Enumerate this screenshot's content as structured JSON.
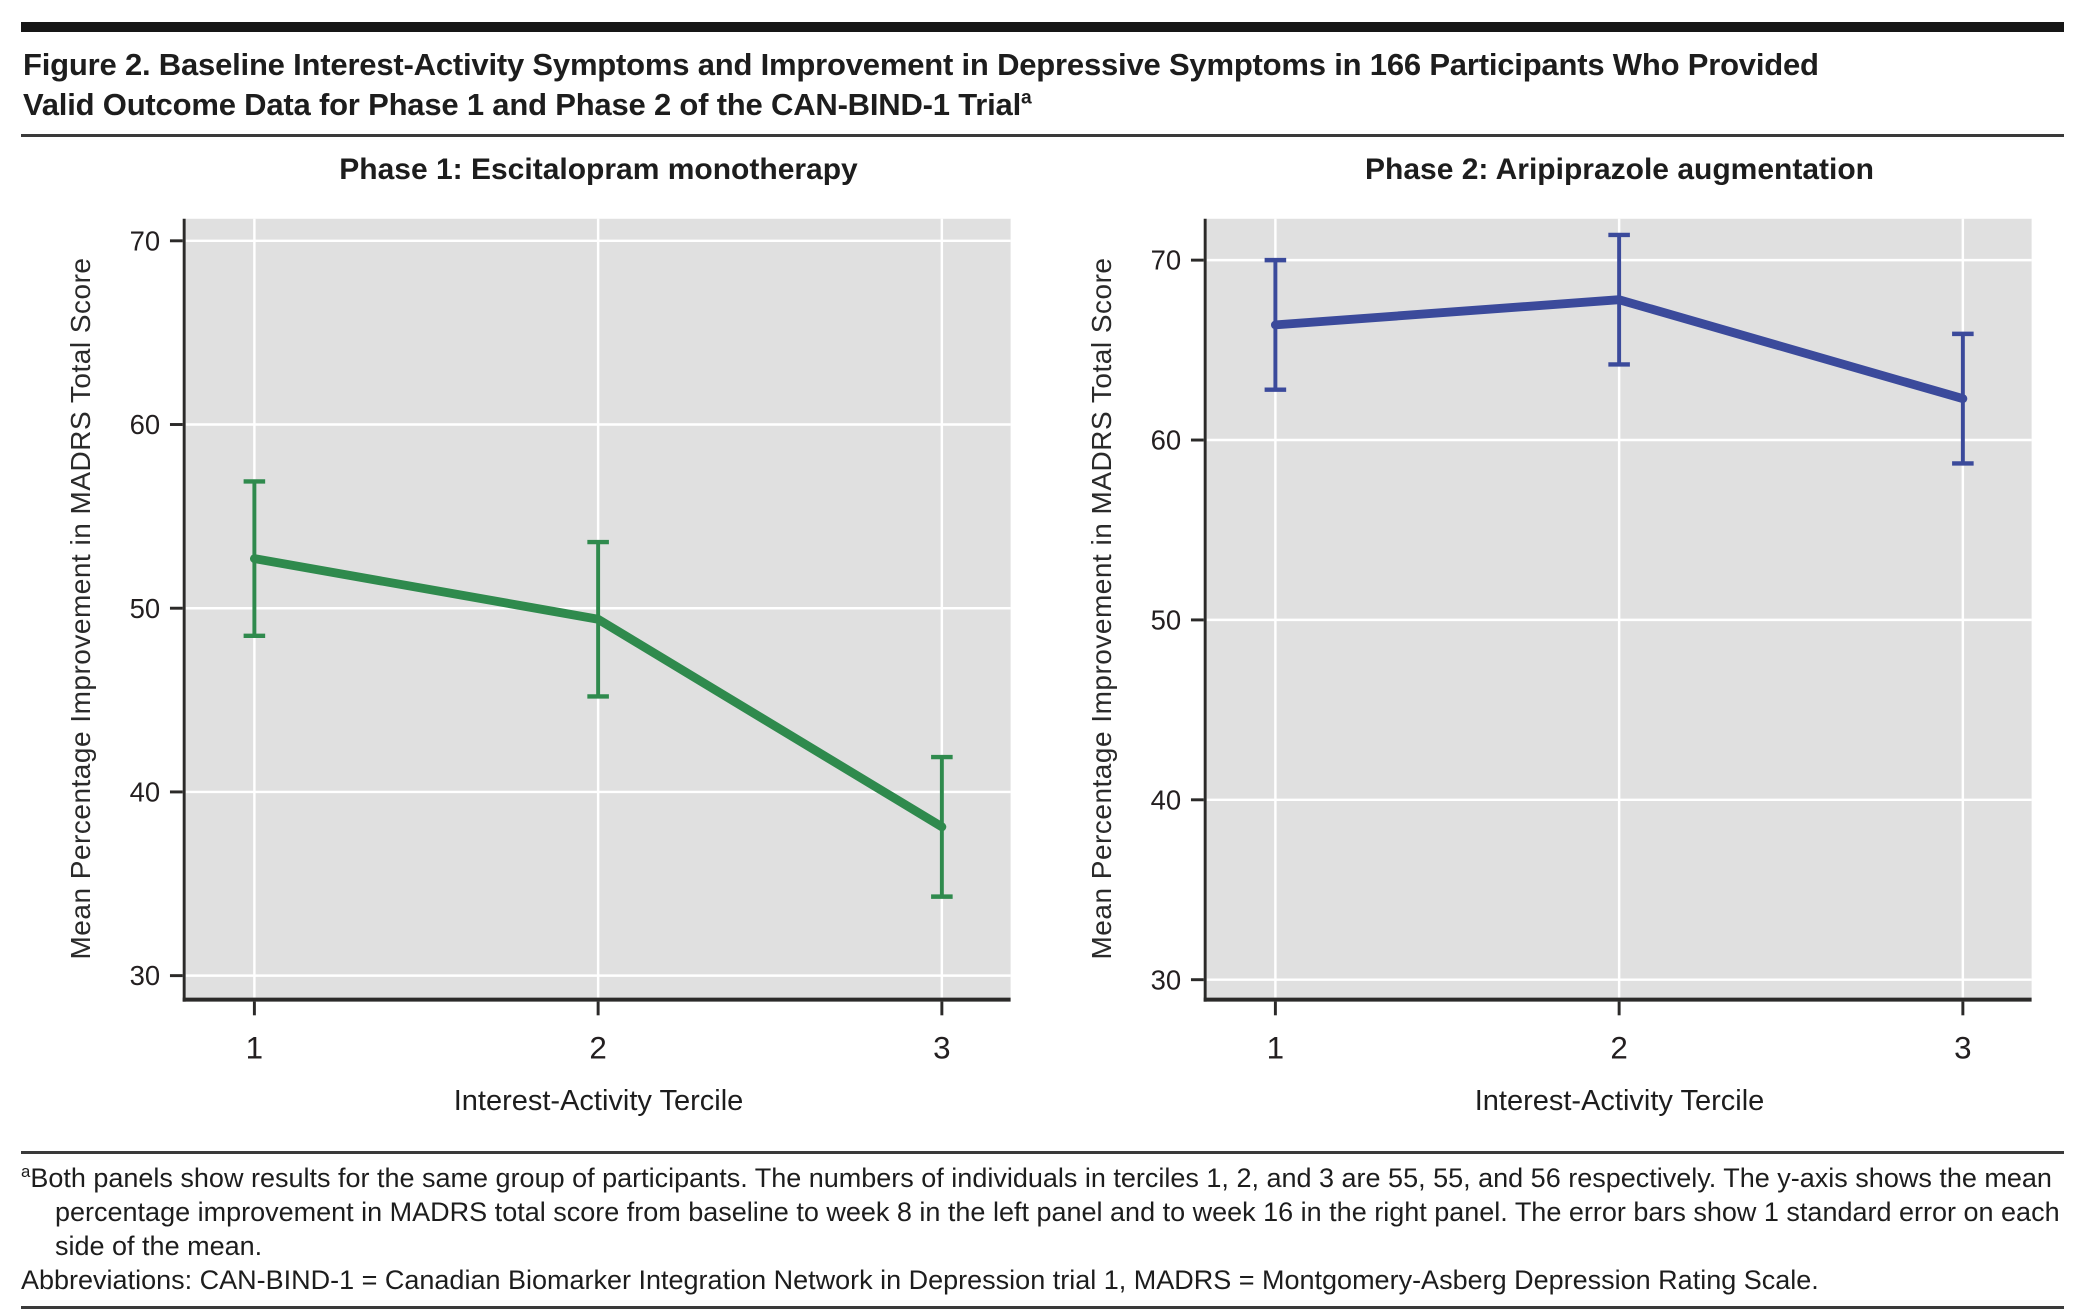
{
  "figure": {
    "title_lines": [
      "Figure 2. Baseline Interest-Activity Symptoms and Improvement in Depressive Symptoms in 166 Participants Who Provided",
      "Valid Outcome Data for Phase 1 and Phase 2 of the CAN-BIND-1 Trial"
    ],
    "title_superscript": "a"
  },
  "chart_data": [
    {
      "type": "line",
      "title": "Phase 1: Escitalopram monotherapy",
      "categories": [
        1,
        2,
        3
      ],
      "series": [
        {
          "name": "Mean percentage improvement (±1 SE)",
          "values": [
            52.7,
            49.4,
            38.1
          ],
          "lower": [
            48.5,
            45.2,
            34.3
          ],
          "upper": [
            56.9,
            53.6,
            41.9
          ]
        }
      ],
      "xlabel": "Interest-Activity Tercile",
      "ylabel": "Mean Percentage Improvement in MADRS Total Score",
      "yticks": [
        30,
        40,
        50,
        60,
        70
      ],
      "ylim": [
        28.8,
        71.2
      ],
      "xlim": [
        0.8,
        3.2
      ],
      "grid": true,
      "legend": "none",
      "line_color": "#2f8a4d",
      "plot_bg": "#e0e0e0",
      "gridline_color": "#ffffff",
      "axis_color": "#2b2a29",
      "tick_text_color": "#231f20"
    },
    {
      "type": "line",
      "title": "Phase 2: Aripiprazole augmentation",
      "categories": [
        1,
        2,
        3
      ],
      "series": [
        {
          "name": "Mean percentage improvement (±1 SE)",
          "values": [
            66.4,
            67.8,
            62.3
          ],
          "lower": [
            62.8,
            64.2,
            58.7
          ],
          "upper": [
            70.0,
            71.4,
            65.9
          ]
        }
      ],
      "xlabel": "Interest-Activity Tercile",
      "ylabel": "Mean Percentage Improvement in MADRS Total Score",
      "yticks": [
        30,
        40,
        50,
        60,
        70
      ],
      "ylim": [
        29.0,
        72.3
      ],
      "xlim": [
        0.8,
        3.2
      ],
      "grid": true,
      "legend": "none",
      "line_color": "#3b4a9b",
      "plot_bg": "#e0e0e0",
      "gridline_color": "#ffffff",
      "axis_color": "#2b2a29",
      "tick_text_color": "#231f20"
    }
  ],
  "footnote": {
    "superscript": "a",
    "text": "Both panels show results for the same group of participants. The numbers of individuals in terciles 1, 2, and 3 are 55, 55, and 56 respectively. The y-axis shows the mean percentage improvement in MADRS total score from baseline to week 8 in the left panel and to week 16 in the right panel. The error bars show 1 standard error on each side of the mean.",
    "abbreviations": "Abbreviations: CAN-BIND-1 = Canadian Biomarker Integration Network in Depression trial 1, MADRS = Montgomery-Asberg Depression Rating Scale."
  }
}
